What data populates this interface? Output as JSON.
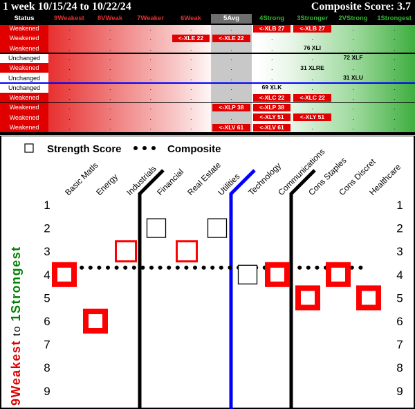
{
  "header": {
    "period": "1 week 10/15/24 to 10/22/24",
    "composite_label": "Composite Score: 3.7"
  },
  "columns": [
    {
      "label": "Status",
      "color": "#ffffff"
    },
    {
      "label": "9Weakest",
      "color": "#e03030"
    },
    {
      "label": "8VWeak",
      "color": "#e03030"
    },
    {
      "label": "7Weaker",
      "color": "#e03030"
    },
    {
      "label": "6Weak",
      "color": "#e03030"
    },
    {
      "label": "5Avg",
      "color": "#ffffff"
    },
    {
      "label": "4Strong",
      "color": "#2fb82f"
    },
    {
      "label": "3Stronger",
      "color": "#2fb82f"
    },
    {
      "label": "2VStrong",
      "color": "#2fb82f"
    },
    {
      "label": "1Strongest",
      "color": "#2fb82f"
    }
  ],
  "table": {
    "rows": [
      {
        "status": "Weakened",
        "cells": [
          {
            "col": 6,
            "text": "<-XLB 27",
            "red": true
          },
          {
            "col": 7,
            "text": "<-XLB 27",
            "red": true
          }
        ]
      },
      {
        "status": "Weakened",
        "cells": [
          {
            "col": 4,
            "text": "<-XLE 22",
            "red": true
          },
          {
            "col": 5,
            "text": "<-XLE 22",
            "red": true
          }
        ]
      },
      {
        "status": "Weakened",
        "cells": [
          {
            "col": 7,
            "text": "76 XLI",
            "red": false
          }
        ]
      },
      {
        "status": "Unchanged",
        "cells": [
          {
            "col": 8,
            "text": "72 XLF",
            "red": false
          }
        ]
      },
      {
        "status": "Weakened",
        "cells": [
          {
            "col": 7,
            "text": "31 XLRE",
            "red": false
          }
        ]
      },
      {
        "status": "Unchanged",
        "cells": [
          {
            "col": 8,
            "text": "31 XLU",
            "red": false
          }
        ]
      },
      {
        "status": "Unchanged",
        "cells": [
          {
            "col": 6,
            "text": "69 XLK",
            "red": false
          }
        ]
      },
      {
        "status": "Weakened",
        "cells": [
          {
            "col": 6,
            "text": "<-XLC 22",
            "red": true
          },
          {
            "col": 7,
            "text": "<-XLC 22",
            "red": true
          }
        ]
      },
      {
        "status": "Weakened",
        "cells": [
          {
            "col": 5,
            "text": "<-XLP 38",
            "red": true
          },
          {
            "col": 6,
            "text": "<-XLP 38",
            "red": true
          }
        ]
      },
      {
        "status": "Weakened",
        "cells": [
          {
            "col": 6,
            "text": "<-XLY 51",
            "red": true
          },
          {
            "col": 7,
            "text": "<-XLY 51",
            "red": true
          }
        ]
      },
      {
        "status": "Weakened",
        "cells": [
          {
            "col": 5,
            "text": "<-XLV 61",
            "red": true
          },
          {
            "col": 6,
            "text": "<-XLV 61",
            "red": true
          }
        ]
      }
    ],
    "dot": "."
  },
  "chart_data": {
    "type": "scatter",
    "legend": {
      "strength": "Strength Score",
      "composite": "Composite"
    },
    "y_axis_label_parts": [
      {
        "text": "9Weakest",
        "color": "#e00000"
      },
      {
        "text": " to ",
        "color": "#000000"
      },
      {
        "text": "1Strongest",
        "color": "#008000"
      }
    ],
    "ylim": [
      1,
      9
    ],
    "y_ticks": [
      1,
      2,
      3,
      4,
      5,
      6,
      7,
      8,
      9
    ],
    "categories": [
      "Basic Matls",
      "Energy",
      "Industrials",
      "Financial",
      "Real Estate",
      "Utilities",
      "Technology",
      "Communications",
      "Cons Staples",
      "Cons Discret",
      "Healthcare"
    ],
    "strength": [
      4,
      6,
      3,
      2,
      3,
      2,
      4,
      4,
      5,
      4,
      5
    ],
    "weakened": [
      true,
      true,
      true,
      false,
      true,
      false,
      false,
      true,
      true,
      true,
      true
    ],
    "composite": 3.7,
    "dividers": [
      {
        "after_index": 2,
        "color": "#000000"
      },
      {
        "after_index": 5,
        "color": "#0000ff"
      },
      {
        "after_index": 7,
        "color": "#000000"
      }
    ]
  }
}
